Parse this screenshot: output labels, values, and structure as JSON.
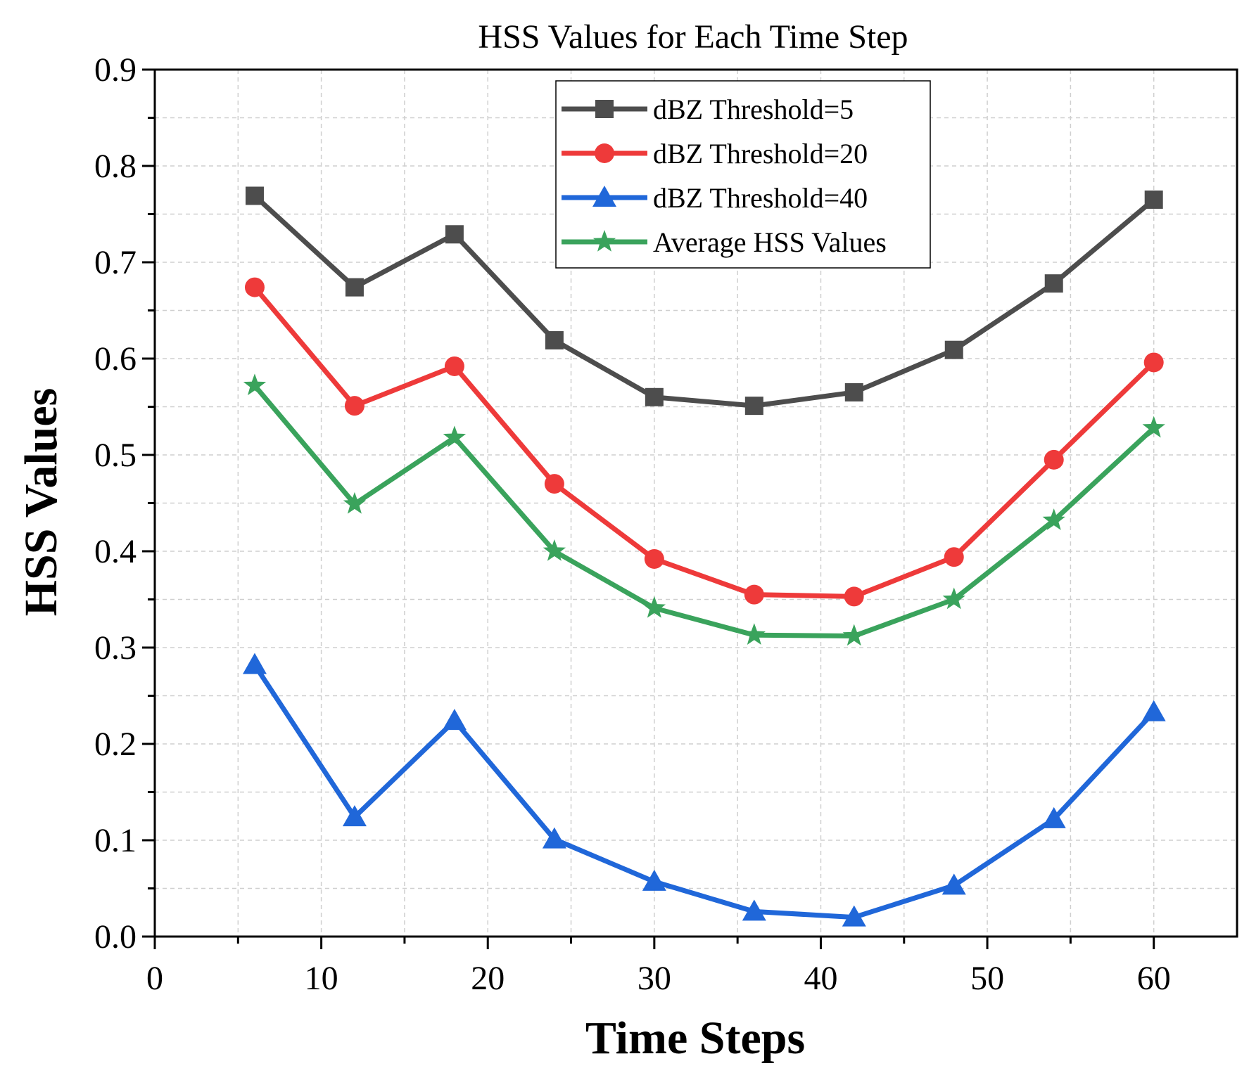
{
  "chart_data": {
    "type": "line",
    "title": "HSS Values for Each Time Step",
    "xlabel": "Time Steps",
    "ylabel": "HSS Values",
    "xlim": [
      0,
      65
    ],
    "ylim": [
      0,
      0.9
    ],
    "xticks": [
      "0",
      "10",
      "20",
      "30",
      "40",
      "50",
      "60"
    ],
    "yticks": [
      "0.0",
      "0.1",
      "0.2",
      "0.3",
      "0.4",
      "0.5",
      "0.6",
      "0.7",
      "0.8",
      "0.9"
    ],
    "grid": true,
    "legend_position": "top-center",
    "x": [
      6,
      12,
      18,
      24,
      30,
      36,
      42,
      48,
      54,
      60
    ],
    "series": [
      {
        "name": "dBZ Threshold=5",
        "color": "#4d4d4d",
        "marker": "square",
        "values": [
          0.769,
          0.674,
          0.729,
          0.619,
          0.56,
          0.551,
          0.565,
          0.609,
          0.678,
          0.765
        ]
      },
      {
        "name": "dBZ Threshold=20",
        "color": "#ee3a3a",
        "marker": "circle",
        "values": [
          0.674,
          0.551,
          0.592,
          0.47,
          0.392,
          0.355,
          0.353,
          0.394,
          0.495,
          0.596
        ]
      },
      {
        "name": "dBZ Threshold=40",
        "color": "#2067d9",
        "marker": "triangle",
        "values": [
          0.282,
          0.124,
          0.224,
          0.101,
          0.057,
          0.026,
          0.02,
          0.053,
          0.122,
          0.233
        ]
      },
      {
        "name": "Average HSS Values",
        "color": "#3aa35c",
        "marker": "star",
        "values": [
          0.572,
          0.449,
          0.518,
          0.4,
          0.341,
          0.313,
          0.312,
          0.35,
          0.432,
          0.528
        ]
      }
    ]
  }
}
